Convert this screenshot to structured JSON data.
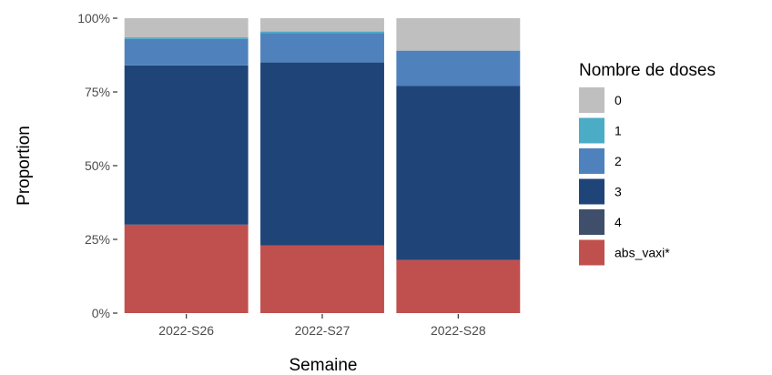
{
  "chart_data": {
    "type": "bar",
    "stacked": true,
    "xlabel": "Semaine",
    "ylabel": "Proportion",
    "categories": [
      "2022-S26",
      "2022-S27",
      "2022-S28"
    ],
    "ylim": [
      0,
      1
    ],
    "yticks": [
      {
        "value": 0,
        "label": "0%"
      },
      {
        "value": 0.25,
        "label": "25%"
      },
      {
        "value": 0.5,
        "label": "50%"
      },
      {
        "value": 0.75,
        "label": "75%"
      },
      {
        "value": 1,
        "label": "100%"
      }
    ],
    "grid": false,
    "legend": {
      "title": "Nombre de doses",
      "position": "right"
    },
    "series": [
      {
        "name": "abs_vaxi*",
        "color": "#c0504d",
        "values": [
          0.3,
          0.23,
          0.18
        ]
      },
      {
        "name": "4",
        "color": "#3f4f6b",
        "values": [
          0.0,
          0.0,
          0.0
        ]
      },
      {
        "name": "3",
        "color": "#1f4478",
        "values": [
          0.54,
          0.62,
          0.59
        ]
      },
      {
        "name": "2",
        "color": "#4f81bd",
        "values": [
          0.09,
          0.1,
          0.12
        ]
      },
      {
        "name": "1",
        "color": "#4bacc6",
        "values": [
          0.005,
          0.005,
          0.0
        ]
      },
      {
        "name": "0",
        "color": "#bfbfbf",
        "values": [
          0.065,
          0.045,
          0.11
        ]
      }
    ],
    "legend_order": [
      "0",
      "1",
      "2",
      "3",
      "4",
      "abs_vaxi*"
    ]
  }
}
